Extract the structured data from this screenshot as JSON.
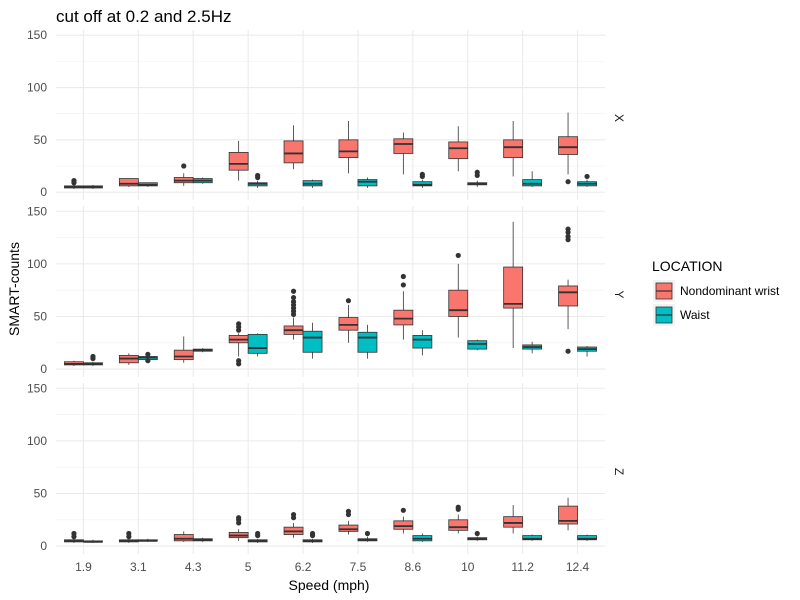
{
  "chart_data": {
    "type": "box",
    "title": "cut off at 0.2 and 2.5Hz",
    "xlabel": "Speed (mph)",
    "ylabel": "SMART-counts",
    "categories": [
      "1.9",
      "3.1",
      "4.3",
      "5",
      "6.2",
      "7.5",
      "8.6",
      "10",
      "11.2",
      "12.4"
    ],
    "ylim": [
      0,
      155
    ],
    "yticks": [
      0,
      50,
      100,
      150
    ],
    "grid": true,
    "legend": {
      "title": "LOCATION",
      "position": "right",
      "entries": [
        {
          "label": "Nondominant wrist",
          "color": "#F8766D"
        },
        {
          "label": "Waist",
          "color": "#00BFC4"
        }
      ]
    },
    "facets": [
      {
        "label": "X",
        "series": [
          {
            "name": "Nondominant wrist",
            "color": "#F8766D",
            "boxes": [
              {
                "min": 3,
                "q1": 4,
                "median": 5,
                "q3": 6,
                "max": 7,
                "outliers": [
                  9,
                  11
                ]
              },
              {
                "min": 5,
                "q1": 6,
                "median": 8,
                "q3": 13,
                "max": 13,
                "outliers": []
              },
              {
                "min": 6,
                "q1": 9,
                "median": 11,
                "q3": 14,
                "max": 18,
                "outliers": [
                  25
                ]
              },
              {
                "min": 11,
                "q1": 21,
                "median": 27,
                "q3": 38,
                "max": 49,
                "outliers": []
              },
              {
                "min": 22,
                "q1": 28,
                "median": 37,
                "q3": 49,
                "max": 64,
                "outliers": []
              },
              {
                "min": 18,
                "q1": 33,
                "median": 39,
                "q3": 50,
                "max": 68,
                "outliers": []
              },
              {
                "min": 17,
                "q1": 37,
                "median": 46,
                "q3": 51,
                "max": 57,
                "outliers": []
              },
              {
                "min": 20,
                "q1": 32,
                "median": 42,
                "q3": 48,
                "max": 63,
                "outliers": []
              },
              {
                "min": 15,
                "q1": 33,
                "median": 43,
                "q3": 50,
                "max": 68,
                "outliers": []
              },
              {
                "min": 17,
                "q1": 36,
                "median": 43,
                "q3": 53,
                "max": 76,
                "outliers": [
                  10
                ]
              }
            ]
          },
          {
            "name": "Waist",
            "color": "#00BFC4",
            "boxes": [
              {
                "min": 3,
                "q1": 4,
                "median": 5,
                "q3": 6,
                "max": 7,
                "outliers": []
              },
              {
                "min": 5,
                "q1": 6,
                "median": 7,
                "q3": 9,
                "max": 9,
                "outliers": []
              },
              {
                "min": 8,
                "q1": 9,
                "median": 11,
                "q3": 13,
                "max": 14,
                "outliers": []
              },
              {
                "min": 4,
                "q1": 6,
                "median": 8,
                "q3": 9,
                "max": 11,
                "outliers": [
                  14,
                  16
                ]
              },
              {
                "min": 4,
                "q1": 6,
                "median": 8,
                "q3": 11,
                "max": 12,
                "outliers": []
              },
              {
                "min": 4,
                "q1": 6,
                "median": 10,
                "q3": 12,
                "max": 14,
                "outliers": []
              },
              {
                "min": 4,
                "q1": 6,
                "median": 7,
                "q3": 10,
                "max": 12,
                "outliers": [
                  15,
                  17
                ]
              },
              {
                "min": 5,
                "q1": 7,
                "median": 8,
                "q3": 9,
                "max": 11,
                "outliers": [
                  16,
                  19
                ]
              },
              {
                "min": 5,
                "q1": 6,
                "median": 8,
                "q3": 12,
                "max": 20,
                "outliers": []
              },
              {
                "min": 5,
                "q1": 6,
                "median": 8,
                "q3": 10,
                "max": 12,
                "outliers": [
                  15
                ]
              }
            ]
          }
        ]
      },
      {
        "label": "Y",
        "series": [
          {
            "name": "Nondominant wrist",
            "color": "#F8766D",
            "boxes": [
              {
                "min": 3,
                "q1": 4,
                "median": 5,
                "q3": 7,
                "max": 8,
                "outliers": []
              },
              {
                "min": 4,
                "q1": 6,
                "median": 10,
                "q3": 13,
                "max": 15,
                "outliers": []
              },
              {
                "min": 6,
                "q1": 9,
                "median": 12,
                "q3": 18,
                "max": 31,
                "outliers": []
              },
              {
                "min": 12,
                "q1": 25,
                "median": 28,
                "q3": 32,
                "max": 34,
                "outliers": [
                  5,
                  8,
                  37,
                  40,
                  43
                ]
              },
              {
                "min": 28,
                "q1": 33,
                "median": 37,
                "q3": 41,
                "max": 49,
                "outliers": [
                  52,
                  55,
                  58,
                  61,
                  64,
                  68,
                  74
                ]
              },
              {
                "min": 25,
                "q1": 37,
                "median": 42,
                "q3": 49,
                "max": 61,
                "outliers": [
                  65
                ]
              },
              {
                "min": 28,
                "q1": 42,
                "median": 48,
                "q3": 56,
                "max": 74,
                "outliers": [
                  80,
                  88
                ]
              },
              {
                "min": 30,
                "q1": 50,
                "median": 56,
                "q3": 75,
                "max": 100,
                "outliers": [
                  108
                ]
              },
              {
                "min": 20,
                "q1": 58,
                "median": 62,
                "q3": 97,
                "max": 140,
                "outliers": []
              },
              {
                "min": 38,
                "q1": 60,
                "median": 73,
                "q3": 79,
                "max": 85,
                "outliers": [
                  17,
                  123,
                  126,
                  130,
                  133
                ]
              }
            ]
          },
          {
            "name": "Waist",
            "color": "#00BFC4",
            "boxes": [
              {
                "min": 3,
                "q1": 4,
                "median": 5,
                "q3": 6,
                "max": 7,
                "outliers": [
                  10,
                  12
                ]
              },
              {
                "min": 8,
                "q1": 9,
                "median": 11,
                "q3": 12,
                "max": 13,
                "outliers": [
                  8,
                  14
                ]
              },
              {
                "min": 16,
                "q1": 17,
                "median": 18,
                "q3": 19,
                "max": 20,
                "outliers": []
              },
              {
                "min": 12,
                "q1": 15,
                "median": 20,
                "q3": 33,
                "max": 34,
                "outliers": []
              },
              {
                "min": 10,
                "q1": 16,
                "median": 30,
                "q3": 36,
                "max": 44,
                "outliers": []
              },
              {
                "min": 10,
                "q1": 16,
                "median": 30,
                "q3": 35,
                "max": 42,
                "outliers": []
              },
              {
                "min": 13,
                "q1": 20,
                "median": 28,
                "q3": 32,
                "max": 37,
                "outliers": []
              },
              {
                "min": 18,
                "q1": 19,
                "median": 24,
                "q3": 27,
                "max": 28,
                "outliers": []
              },
              {
                "min": 15,
                "q1": 19,
                "median": 21,
                "q3": 23,
                "max": 26,
                "outliers": []
              },
              {
                "min": 12,
                "q1": 17,
                "median": 19,
                "q3": 21,
                "max": 22,
                "outliers": []
              }
            ]
          }
        ]
      },
      {
        "label": "Z",
        "series": [
          {
            "name": "Nondominant wrist",
            "color": "#F8766D",
            "boxes": [
              {
                "min": 3,
                "q1": 4,
                "median": 5,
                "q3": 6,
                "max": 7,
                "outliers": [
                  9,
                  12
                ]
              },
              {
                "min": 3,
                "q1": 4,
                "median": 5,
                "q3": 6,
                "max": 7,
                "outliers": [
                  9,
                  12
                ]
              },
              {
                "min": 4,
                "q1": 5,
                "median": 7,
                "q3": 11,
                "max": 14,
                "outliers": []
              },
              {
                "min": 5,
                "q1": 8,
                "median": 10,
                "q3": 13,
                "max": 16,
                "outliers": [
                  22,
                  25,
                  27
                ]
              },
              {
                "min": 8,
                "q1": 11,
                "median": 14,
                "q3": 18,
                "max": 22,
                "outliers": [
                  27,
                  30
                ]
              },
              {
                "min": 11,
                "q1": 14,
                "median": 16,
                "q3": 20,
                "max": 24,
                "outliers": [
                  30,
                  33
                ]
              },
              {
                "min": 12,
                "q1": 16,
                "median": 19,
                "q3": 24,
                "max": 28,
                "outliers": [
                  34
                ]
              },
              {
                "min": 12,
                "q1": 15,
                "median": 18,
                "q3": 25,
                "max": 30,
                "outliers": [
                  35,
                  37
                ]
              },
              {
                "min": 12,
                "q1": 18,
                "median": 22,
                "q3": 28,
                "max": 39,
                "outliers": []
              },
              {
                "min": 15,
                "q1": 21,
                "median": 24,
                "q3": 38,
                "max": 46,
                "outliers": []
              }
            ]
          },
          {
            "name": "Waist",
            "color": "#00BFC4",
            "boxes": [
              {
                "min": 3,
                "q1": 4,
                "median": 4,
                "q3": 5,
                "max": 6,
                "outliers": []
              },
              {
                "min": 4,
                "q1": 5,
                "median": 5,
                "q3": 6,
                "max": 7,
                "outliers": []
              },
              {
                "min": 4,
                "q1": 5,
                "median": 6,
                "q3": 7,
                "max": 8,
                "outliers": []
              },
              {
                "min": 3,
                "q1": 4,
                "median": 5,
                "q3": 6,
                "max": 7,
                "outliers": [
                  10,
                  12
                ]
              },
              {
                "min": 3,
                "q1": 4,
                "median": 5,
                "q3": 6,
                "max": 7,
                "outliers": [
                  10,
                  12
                ]
              },
              {
                "min": 4,
                "q1": 5,
                "median": 6,
                "q3": 7,
                "max": 9,
                "outliers": [
                  12
                ]
              },
              {
                "min": 4,
                "q1": 5,
                "median": 7,
                "q3": 10,
                "max": 12,
                "outliers": []
              },
              {
                "min": 5,
                "q1": 6,
                "median": 7,
                "q3": 8,
                "max": 9,
                "outliers": [
                  12
                ]
              },
              {
                "min": 5,
                "q1": 6,
                "median": 7,
                "q3": 10,
                "max": 11,
                "outliers": []
              },
              {
                "min": 5,
                "q1": 6,
                "median": 7,
                "q3": 10,
                "max": 11,
                "outliers": []
              }
            ]
          }
        ]
      }
    ]
  }
}
